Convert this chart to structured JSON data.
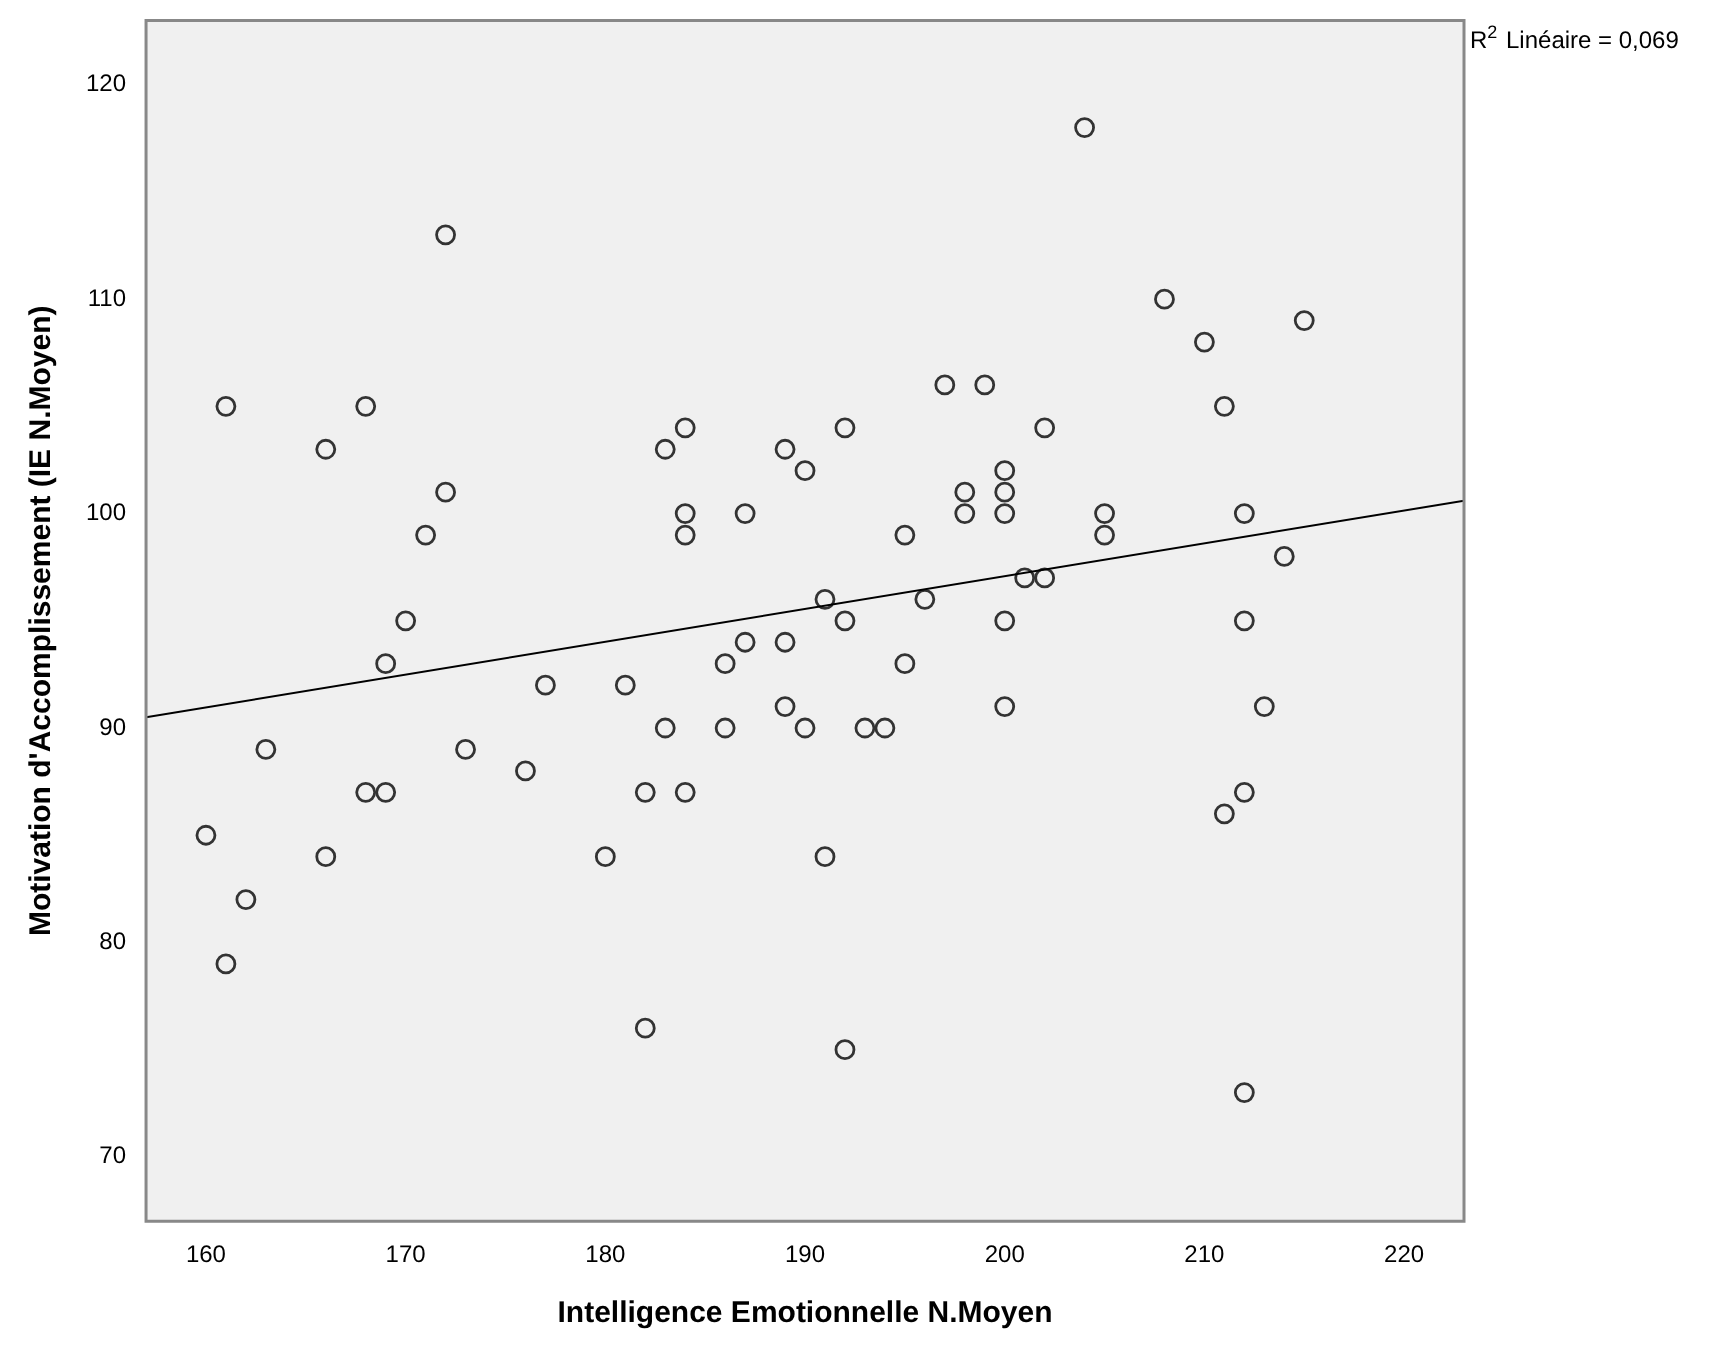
{
  "chart_data": {
    "type": "scatter",
    "xlabel": "Intelligence Emotionnelle N.Moyen",
    "ylabel": "Motivation d'Accomplissement (IE N.Moyen)",
    "annotations": [
      "R$^{2}$ Linéaire = 0,069"
    ],
    "xlim": [
      157,
      223
    ],
    "ylim": [
      67,
      123
    ],
    "xticks": [
      160,
      170,
      180,
      190,
      200,
      210,
      220
    ],
    "yticks": [
      70,
      80,
      90,
      100,
      110,
      120
    ],
    "grid": false,
    "legend": false,
    "series": [
      {
        "marker": "circle",
        "color": "#333333",
        "x": [
          161,
          168,
          166,
          172,
          172,
          171,
          170,
          169,
          177,
          173,
          163,
          160,
          166,
          162,
          161,
          168,
          169,
          176,
          181,
          180,
          182,
          182,
          183,
          184,
          184,
          184,
          187,
          187,
          183,
          184,
          186,
          186,
          189,
          190,
          189,
          189,
          190,
          191,
          191,
          192,
          192,
          193,
          194,
          192,
          195,
          195,
          196,
          197,
          199,
          198,
          198,
          200,
          200,
          200,
          200,
          200,
          201,
          202,
          202,
          204,
          205,
          205,
          208,
          210,
          211,
          212,
          212,
          212,
          211,
          213,
          214,
          215,
          212
        ],
        "values": [
          105,
          105,
          103,
          113,
          101,
          99,
          95,
          93,
          92,
          89,
          89,
          85,
          84,
          82,
          79,
          87,
          87,
          88,
          92,
          84,
          87,
          76,
          103,
          104,
          100,
          99,
          100,
          94,
          90,
          87,
          93,
          90,
          103,
          102,
          94,
          91,
          90,
          96,
          84,
          104,
          95,
          90,
          90,
          75,
          99,
          93,
          96,
          106,
          106,
          101,
          100,
          102,
          101,
          100,
          95,
          91,
          97,
          97,
          104,
          118,
          100,
          99,
          110,
          108,
          105,
          100,
          95,
          87,
          86,
          91,
          98,
          109,
          73
        ]
      },
      {
        "type": "line",
        "marker": "none",
        "color": "#000000",
        "x": [
          157,
          223
        ],
        "values": [
          90.5,
          100.6
        ]
      }
    ]
  }
}
